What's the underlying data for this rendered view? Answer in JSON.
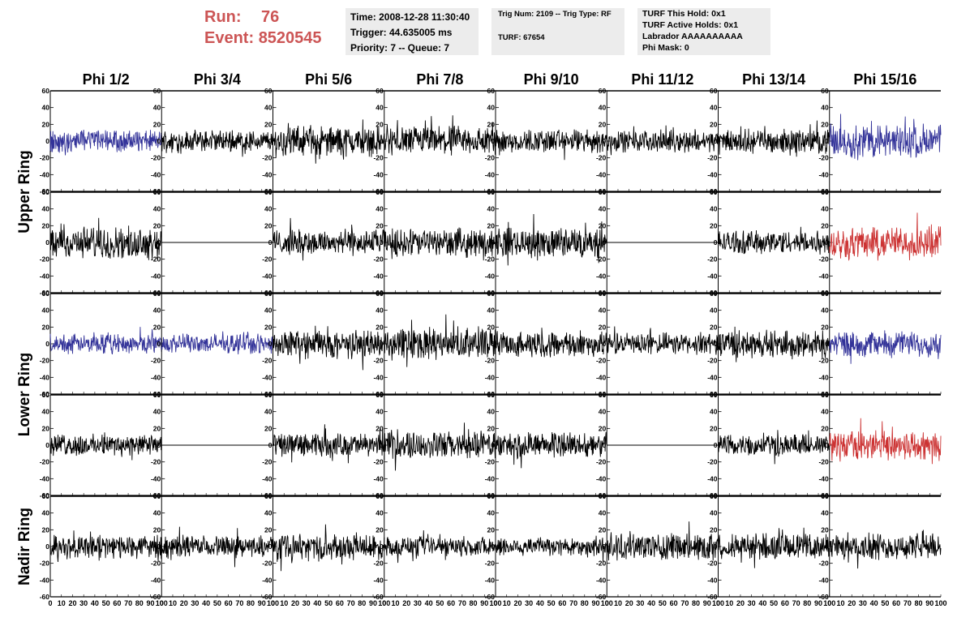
{
  "header": {
    "run_label": "Run:",
    "run_value": "76",
    "event_label": "Event:",
    "event_value": "8520545",
    "accent_color": "#cc5555"
  },
  "info_time": {
    "time": "Time: 2008-12-28 11:30:40",
    "trigger": "Trigger: 44.635005 ms",
    "priority": "Priority: 7 -- Queue: 7"
  },
  "info_trig": {
    "trig": "Trig Num: 2109 -- Trig Type: RF",
    "turf": "TURF: 67654"
  },
  "info_turf": {
    "hold": "TURF This Hold: 0x1",
    "active": "TURF Active Holds: 0x1",
    "labrador": "Labrador AAAAAAAAAA",
    "phimask": "Phi Mask: 0"
  },
  "columns": [
    "Phi 1/2",
    "Phi 3/4",
    "Phi 5/6",
    "Phi 7/8",
    "Phi 9/10",
    "Phi 11/12",
    "Phi 13/14",
    "Phi 15/16"
  ],
  "ring_labels": [
    "Upper Ring",
    "Lower Ring",
    "Nadir Ring"
  ],
  "chart_data": {
    "type": "line",
    "description": "40 waveform panels arranged in 5 rows x 8 columns; values are noise-like voltage traces",
    "xlim": [
      0,
      100
    ],
    "ylim": [
      -60,
      60
    ],
    "x_ticks": [
      0,
      10,
      20,
      30,
      40,
      50,
      60,
      70,
      80,
      90,
      100
    ],
    "y_ticks": [
      -60,
      -40,
      -20,
      0,
      20,
      40,
      60
    ],
    "rows": [
      {
        "ring": "Upper Ring",
        "colors": [
          "#333399",
          "#000000",
          "#000000",
          "#000000",
          "#000000",
          "#000000",
          "#000000",
          "#333399"
        ],
        "amplitude": [
          10,
          10,
          14,
          14,
          11,
          10,
          11,
          16
        ],
        "flat": [
          false,
          false,
          false,
          false,
          false,
          false,
          false,
          false
        ]
      },
      {
        "ring": "Upper Ring",
        "colors": [
          "#000000",
          "#000000",
          "#000000",
          "#000000",
          "#000000",
          "#000000",
          "#000000",
          "#cc3333"
        ],
        "amplitude": [
          15,
          0,
          12,
          13,
          14,
          0,
          11,
          15
        ],
        "flat": [
          false,
          true,
          false,
          false,
          false,
          true,
          false,
          false
        ]
      },
      {
        "ring": "Lower Ring",
        "colors": [
          "#333399",
          "#333399",
          "#000000",
          "#000000",
          "#000000",
          "#000000",
          "#000000",
          "#333399"
        ],
        "amplitude": [
          9,
          9,
          13,
          15,
          12,
          10,
          13,
          12
        ],
        "flat": [
          false,
          false,
          false,
          false,
          false,
          false,
          false,
          false
        ]
      },
      {
        "ring": "Lower Ring",
        "colors": [
          "#000000",
          "#000000",
          "#000000",
          "#000000",
          "#000000",
          "#000000",
          "#000000",
          "#cc3333"
        ],
        "amplitude": [
          10,
          0,
          11,
          13,
          12,
          0,
          10,
          14
        ],
        "flat": [
          false,
          true,
          false,
          false,
          false,
          true,
          false,
          false
        ]
      },
      {
        "ring": "Nadir Ring",
        "colors": [
          "#000000",
          "#000000",
          "#000000",
          "#000000",
          "#000000",
          "#000000",
          "#000000",
          "#000000"
        ],
        "amplitude": [
          11,
          10,
          12,
          9,
          9,
          13,
          12,
          12
        ],
        "flat": [
          false,
          false,
          false,
          false,
          false,
          false,
          false,
          false
        ]
      }
    ]
  }
}
